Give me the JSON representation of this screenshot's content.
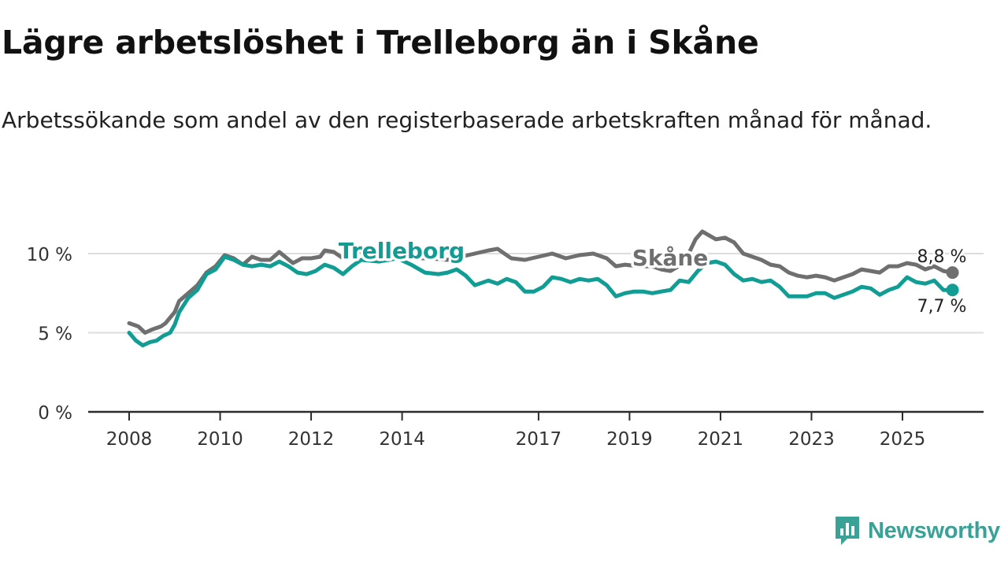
{
  "header": {
    "title": "Lägre arbetslöshet i Trelleborg än i Skåne",
    "subtitle": "Arbetssökande som andel av den registerbaserade arbetskraften månad för månad."
  },
  "brand": {
    "name": "Newsworthy",
    "color": "#3aa197"
  },
  "chart_data": {
    "type": "line",
    "title": "Lägre arbetslöshet i Trelleborg än i Skåne",
    "xlabel": "",
    "ylabel": "",
    "xlim": [
      2008.0,
      2026.1
    ],
    "ylim": [
      0,
      10
    ],
    "grid": true,
    "y_ticks": [
      {
        "value": 0,
        "label": "0 %"
      },
      {
        "value": 5,
        "label": "5 %"
      },
      {
        "value": 10,
        "label": "10 %"
      }
    ],
    "x_ticks": [
      {
        "value": 2008,
        "label": "2008"
      },
      {
        "value": 2010,
        "label": "2010"
      },
      {
        "value": 2012,
        "label": "2012"
      },
      {
        "value": 2014,
        "label": "2014"
      },
      {
        "value": 2017,
        "label": "2017"
      },
      {
        "value": 2019,
        "label": "2019"
      },
      {
        "value": 2021,
        "label": "2021"
      },
      {
        "value": 2023,
        "label": "2023"
      },
      {
        "value": 2025,
        "label": "2025"
      }
    ],
    "series": [
      {
        "name": "Skåne",
        "label": "Skåne",
        "color": "#6f6f6f",
        "end_label": "8,8 %",
        "points": [
          [
            2008.0,
            5.6
          ],
          [
            2008.2,
            5.4
          ],
          [
            2008.35,
            5.0
          ],
          [
            2008.5,
            5.2
          ],
          [
            2008.7,
            5.4
          ],
          [
            2008.8,
            5.6
          ],
          [
            2009.0,
            6.3
          ],
          [
            2009.1,
            7.0
          ],
          [
            2009.3,
            7.5
          ],
          [
            2009.5,
            8.0
          ],
          [
            2009.7,
            8.8
          ],
          [
            2009.9,
            9.2
          ],
          [
            2010.1,
            9.9
          ],
          [
            2010.3,
            9.7
          ],
          [
            2010.5,
            9.3
          ],
          [
            2010.7,
            9.8
          ],
          [
            2010.9,
            9.6
          ],
          [
            2011.1,
            9.6
          ],
          [
            2011.3,
            10.1
          ],
          [
            2011.6,
            9.4
          ],
          [
            2011.8,
            9.7
          ],
          [
            2012.0,
            9.7
          ],
          [
            2012.2,
            9.8
          ],
          [
            2012.3,
            10.2
          ],
          [
            2012.5,
            10.1
          ],
          [
            2012.7,
            9.7
          ],
          [
            2012.9,
            10.0
          ],
          [
            2013.0,
            10.1
          ],
          [
            2013.3,
            10.1
          ],
          [
            2013.6,
            9.9
          ],
          [
            2014.0,
            9.9
          ],
          [
            2014.3,
            9.7
          ],
          [
            2014.6,
            9.7
          ],
          [
            2015.0,
            9.6
          ],
          [
            2015.3,
            9.8
          ],
          [
            2015.6,
            10.0
          ],
          [
            2015.9,
            10.2
          ],
          [
            2016.1,
            10.3
          ],
          [
            2016.4,
            9.7
          ],
          [
            2016.7,
            9.6
          ],
          [
            2017.0,
            9.8
          ],
          [
            2017.3,
            10.0
          ],
          [
            2017.6,
            9.7
          ],
          [
            2017.9,
            9.9
          ],
          [
            2018.2,
            10.0
          ],
          [
            2018.5,
            9.7
          ],
          [
            2018.7,
            9.2
          ],
          [
            2018.9,
            9.3
          ],
          [
            2019.2,
            9.2
          ],
          [
            2019.5,
            9.2
          ],
          [
            2019.7,
            9.0
          ],
          [
            2019.9,
            8.9
          ],
          [
            2020.2,
            9.4
          ],
          [
            2020.45,
            10.9
          ],
          [
            2020.6,
            11.4
          ],
          [
            2020.9,
            10.9
          ],
          [
            2021.1,
            11.0
          ],
          [
            2021.3,
            10.7
          ],
          [
            2021.5,
            10.0
          ],
          [
            2021.7,
            9.8
          ],
          [
            2021.9,
            9.6
          ],
          [
            2022.1,
            9.3
          ],
          [
            2022.3,
            9.2
          ],
          [
            2022.5,
            8.8
          ],
          [
            2022.7,
            8.6
          ],
          [
            2022.9,
            8.5
          ],
          [
            2023.1,
            8.6
          ],
          [
            2023.3,
            8.5
          ],
          [
            2023.5,
            8.3
          ],
          [
            2023.7,
            8.5
          ],
          [
            2023.9,
            8.7
          ],
          [
            2024.1,
            9.0
          ],
          [
            2024.3,
            8.9
          ],
          [
            2024.5,
            8.8
          ],
          [
            2024.7,
            9.2
          ],
          [
            2024.9,
            9.2
          ],
          [
            2025.1,
            9.4
          ],
          [
            2025.3,
            9.3
          ],
          [
            2025.5,
            9.0
          ],
          [
            2025.7,
            9.2
          ],
          [
            2025.9,
            8.9
          ],
          [
            2026.1,
            8.8
          ]
        ]
      },
      {
        "name": "Trelleborg",
        "label": "Trelleborg",
        "color": "#119d93",
        "end_label": "7,7 %",
        "points": [
          [
            2008.0,
            5.0
          ],
          [
            2008.15,
            4.5
          ],
          [
            2008.3,
            4.2
          ],
          [
            2008.45,
            4.4
          ],
          [
            2008.6,
            4.5
          ],
          [
            2008.75,
            4.8
          ],
          [
            2008.9,
            5.0
          ],
          [
            2009.0,
            5.5
          ],
          [
            2009.1,
            6.3
          ],
          [
            2009.3,
            7.2
          ],
          [
            2009.5,
            7.7
          ],
          [
            2009.7,
            8.7
          ],
          [
            2009.9,
            9.0
          ],
          [
            2010.1,
            9.8
          ],
          [
            2010.3,
            9.6
          ],
          [
            2010.5,
            9.3
          ],
          [
            2010.7,
            9.2
          ],
          [
            2010.9,
            9.3
          ],
          [
            2011.1,
            9.2
          ],
          [
            2011.3,
            9.5
          ],
          [
            2011.5,
            9.2
          ],
          [
            2011.7,
            8.8
          ],
          [
            2011.9,
            8.7
          ],
          [
            2012.1,
            8.9
          ],
          [
            2012.3,
            9.3
          ],
          [
            2012.5,
            9.1
          ],
          [
            2012.7,
            8.7
          ],
          [
            2012.9,
            9.2
          ],
          [
            2013.1,
            9.6
          ],
          [
            2013.5,
            9.5
          ],
          [
            2013.9,
            9.7
          ],
          [
            2014.2,
            9.3
          ],
          [
            2014.5,
            8.8
          ],
          [
            2014.8,
            8.7
          ],
          [
            2015.0,
            8.8
          ],
          [
            2015.2,
            9.0
          ],
          [
            2015.4,
            8.6
          ],
          [
            2015.6,
            8.0
          ],
          [
            2015.9,
            8.3
          ],
          [
            2016.1,
            8.1
          ],
          [
            2016.3,
            8.4
          ],
          [
            2016.5,
            8.2
          ],
          [
            2016.7,
            7.6
          ],
          [
            2016.9,
            7.6
          ],
          [
            2017.1,
            7.9
          ],
          [
            2017.3,
            8.5
          ],
          [
            2017.5,
            8.4
          ],
          [
            2017.7,
            8.2
          ],
          [
            2017.9,
            8.4
          ],
          [
            2018.1,
            8.3
          ],
          [
            2018.3,
            8.4
          ],
          [
            2018.5,
            8.0
          ],
          [
            2018.7,
            7.3
          ],
          [
            2018.9,
            7.5
          ],
          [
            2019.1,
            7.6
          ],
          [
            2019.3,
            7.6
          ],
          [
            2019.5,
            7.5
          ],
          [
            2019.7,
            7.6
          ],
          [
            2019.9,
            7.7
          ],
          [
            2020.1,
            8.3
          ],
          [
            2020.3,
            8.2
          ],
          [
            2020.5,
            8.9
          ],
          [
            2020.7,
            9.4
          ],
          [
            2020.9,
            9.5
          ],
          [
            2021.1,
            9.3
          ],
          [
            2021.3,
            8.7
          ],
          [
            2021.5,
            8.3
          ],
          [
            2021.7,
            8.4
          ],
          [
            2021.9,
            8.2
          ],
          [
            2022.1,
            8.3
          ],
          [
            2022.3,
            7.9
          ],
          [
            2022.5,
            7.3
          ],
          [
            2022.7,
            7.3
          ],
          [
            2022.9,
            7.3
          ],
          [
            2023.1,
            7.5
          ],
          [
            2023.3,
            7.5
          ],
          [
            2023.5,
            7.2
          ],
          [
            2023.7,
            7.4
          ],
          [
            2023.9,
            7.6
          ],
          [
            2024.1,
            7.9
          ],
          [
            2024.3,
            7.8
          ],
          [
            2024.5,
            7.4
          ],
          [
            2024.7,
            7.7
          ],
          [
            2024.9,
            7.9
          ],
          [
            2025.1,
            8.5
          ],
          [
            2025.3,
            8.2
          ],
          [
            2025.5,
            8.1
          ],
          [
            2025.7,
            8.3
          ],
          [
            2025.9,
            7.7
          ],
          [
            2026.1,
            7.7
          ]
        ]
      }
    ]
  }
}
